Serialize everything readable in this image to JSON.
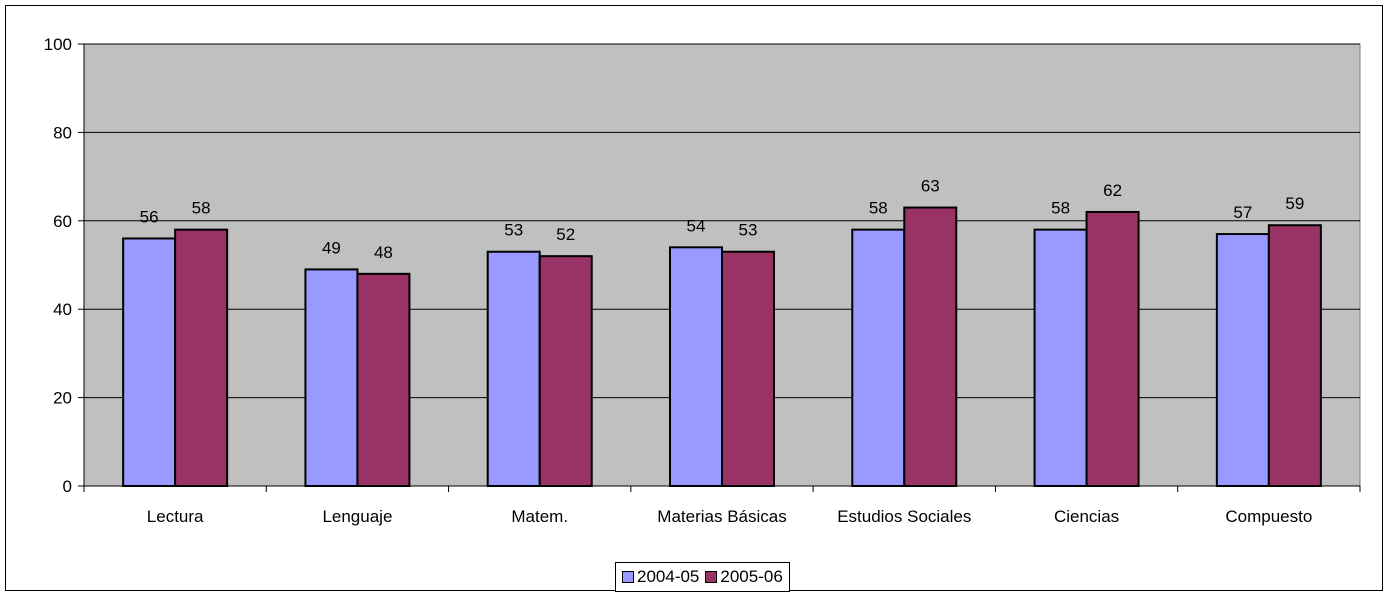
{
  "chart_data": {
    "type": "bar",
    "title": "",
    "xlabel": "",
    "ylabel": "",
    "categories": [
      "Lectura",
      "Lenguaje",
      "Matem.",
      "Materias Básicas",
      "Estudios Sociales",
      "Ciencias",
      "Compuesto"
    ],
    "series": [
      {
        "name": "2004-05",
        "values": [
          56,
          49,
          53,
          54,
          58,
          58,
          57
        ],
        "color": "#9999ff"
      },
      {
        "name": "2005-06",
        "values": [
          58,
          48,
          52,
          53,
          63,
          62,
          59
        ],
        "color": "#993366"
      }
    ],
    "ylim": [
      0,
      100
    ],
    "yticks": [
      0,
      20,
      40,
      60,
      80,
      100
    ],
    "grid": true,
    "plot_background": "#c0c0c0",
    "legend_position": "bottom-center"
  }
}
